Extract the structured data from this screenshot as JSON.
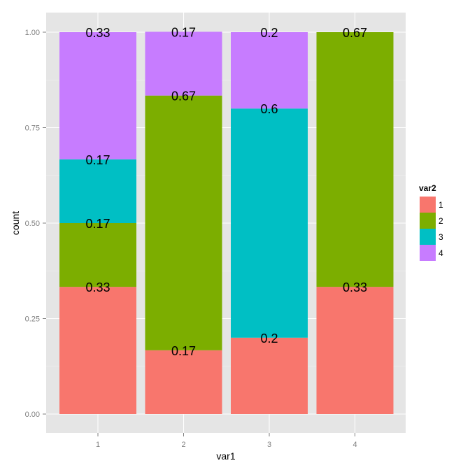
{
  "chart_data": {
    "type": "bar",
    "stacked": true,
    "xlabel": "var1",
    "ylabel": "count",
    "categories": [
      "1",
      "2",
      "3",
      "4"
    ],
    "ylim": [
      0,
      1
    ],
    "yticks": [
      "0.00",
      "0.25",
      "0.50",
      "0.75",
      "1.00"
    ],
    "ytick_values": [
      0,
      0.25,
      0.5,
      0.75,
      1
    ],
    "grid": true,
    "legend": {
      "title": "var2",
      "position": "right",
      "entries": [
        "1",
        "2",
        "3",
        "4"
      ]
    },
    "series": [
      {
        "name": "1",
        "color": "#F8766D",
        "values": [
          0.333,
          0.167,
          0.2,
          0.333
        ]
      },
      {
        "name": "2",
        "color": "#7CAE00",
        "values": [
          0.167,
          0.667,
          0,
          0.667
        ]
      },
      {
        "name": "3",
        "color": "#00BFC4",
        "values": [
          0.167,
          0,
          0.6,
          0
        ]
      },
      {
        "name": "4",
        "color": "#C77CFF",
        "values": [
          0.333,
          0.167,
          0.2,
          0
        ]
      }
    ],
    "data_labels": [
      [
        "0.33",
        "0.17",
        "0.17",
        "0.33"
      ],
      [
        "0.17",
        "0.67",
        "",
        "0.17"
      ],
      [
        "0.2",
        "",
        "0.6",
        "0.2"
      ],
      [
        "0.33",
        "0.67",
        "",
        ""
      ]
    ]
  }
}
